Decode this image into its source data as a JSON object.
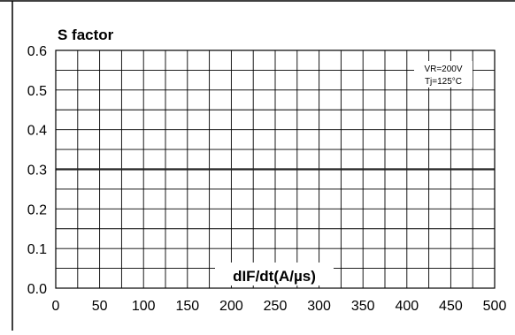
{
  "chart_data": {
    "type": "line",
    "title": "",
    "ylabel": "S factor",
    "xlabel": "dIF/dt(A/µs)",
    "xlim": [
      0,
      500
    ],
    "ylim": [
      0,
      0.6
    ],
    "x_ticks": [
      0,
      50,
      100,
      150,
      200,
      250,
      300,
      350,
      400,
      450,
      500
    ],
    "x_tick_labels": [
      "0",
      "50",
      "100",
      "150",
      "200",
      "250",
      "300",
      "350",
      "400",
      "450",
      "500"
    ],
    "y_ticks": [
      0,
      0.1,
      0.2,
      0.3,
      0.4,
      0.5,
      0.6
    ],
    "y_tick_labels": [
      "0.0",
      "0.1",
      "0.2",
      "0.3",
      "0.4",
      "0.5",
      "0.6"
    ],
    "x_minor_step": 25,
    "y_minor_step": 0.05,
    "grid": true,
    "annotation": [
      "VR=200V",
      "Tj=125°C"
    ],
    "series": [
      {
        "x": [
          0,
          500
        ],
        "y": [
          0.3,
          0.3
        ],
        "color": "#222222"
      }
    ]
  }
}
